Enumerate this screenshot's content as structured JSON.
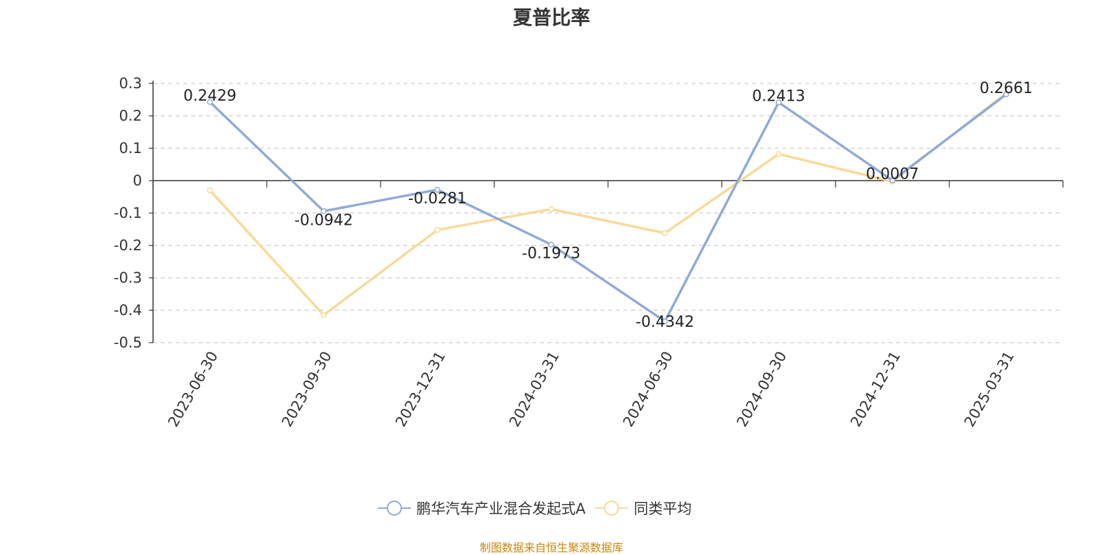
{
  "title": "夏普比率",
  "source": "制图数据来自恒生聚源数据库",
  "chart_data": {
    "type": "line",
    "categories": [
      "2023-06-30",
      "2023-09-30",
      "2023-12-31",
      "2024-03-31",
      "2024-06-30",
      "2024-09-30",
      "2024-12-31",
      "2025-03-31"
    ],
    "ylim": [
      -0.5,
      0.3
    ],
    "yticks": [
      "0.3",
      "0.2",
      "0.1",
      "0",
      "-0.1",
      "-0.2",
      "-0.3",
      "-0.4",
      "-0.5"
    ],
    "grid": true,
    "legend_position": "bottom",
    "series": [
      {
        "name": "鹏华汽车产业混合发起式A",
        "color": "#8eaad8",
        "values": [
          0.2429,
          -0.0942,
          -0.0281,
          -0.1973,
          -0.4342,
          0.2413,
          0.0007,
          0.2661
        ],
        "labels": [
          "0.2429",
          "-0.0942",
          "-0.0281",
          "-0.1973",
          "-0.4342",
          "0.2413",
          "0.0007",
          "0.2661"
        ]
      },
      {
        "name": "同类平均",
        "color": "#fad997",
        "values": [
          -0.03,
          -0.415,
          -0.152,
          -0.088,
          -0.162,
          0.082,
          -0.003,
          0.27
        ]
      }
    ]
  }
}
